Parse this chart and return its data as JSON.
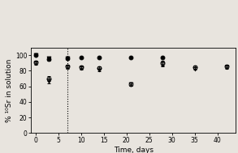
{
  "title": "",
  "xlabel": "Time, days",
  "ylabel": "% ¹⁰Sr in solution",
  "xlim": [
    -1,
    44
  ],
  "ylim": [
    0,
    110
  ],
  "yticks": [
    0,
    20,
    40,
    60,
    80,
    100
  ],
  "xticks": [
    0,
    5,
    10,
    15,
    20,
    25,
    30,
    35,
    40
  ],
  "vline_x": 7,
  "series": {
    "pH10.5_Irradiated": {
      "marker": "o",
      "fillstyle": "none",
      "x": [
        0,
        3,
        7,
        10,
        14,
        21,
        28,
        35,
        42
      ],
      "y": [
        91,
        70,
        86,
        85,
        84,
        63,
        90,
        85,
        86
      ],
      "yerr": [
        2,
        3,
        2,
        2,
        2,
        2,
        3,
        2,
        2
      ]
    },
    "pH10.5_NonIrradiated": {
      "marker": "o",
      "fillstyle": "full",
      "x": [
        0,
        3,
        7,
        10,
        14,
        21,
        28
      ],
      "y": [
        100,
        95,
        96,
        97,
        97,
        97,
        97
      ],
      "yerr": [
        1,
        2,
        2,
        1,
        1,
        1,
        1
      ]
    },
    "pH11.5_Irradiated": {
      "marker": "v",
      "fillstyle": "none",
      "x": [
        0,
        3,
        7,
        10,
        14,
        21,
        28,
        35,
        42
      ],
      "y": [
        90,
        67,
        85,
        84,
        81,
        63,
        89,
        83,
        85
      ],
      "yerr": [
        2,
        3,
        2,
        2,
        2,
        2,
        3,
        2,
        2
      ]
    },
    "pH11.5_NonIrradiated": {
      "marker": "v",
      "fillstyle": "full",
      "x": [
        0,
        3,
        7
      ],
      "y": [
        100,
        96,
        96
      ],
      "yerr": [
        1,
        1,
        1
      ]
    }
  },
  "legend_fontsize": 5.2,
  "tick_fontsize": 5.5,
  "label_fontsize": 6.5,
  "background_color": "#e8e4de"
}
